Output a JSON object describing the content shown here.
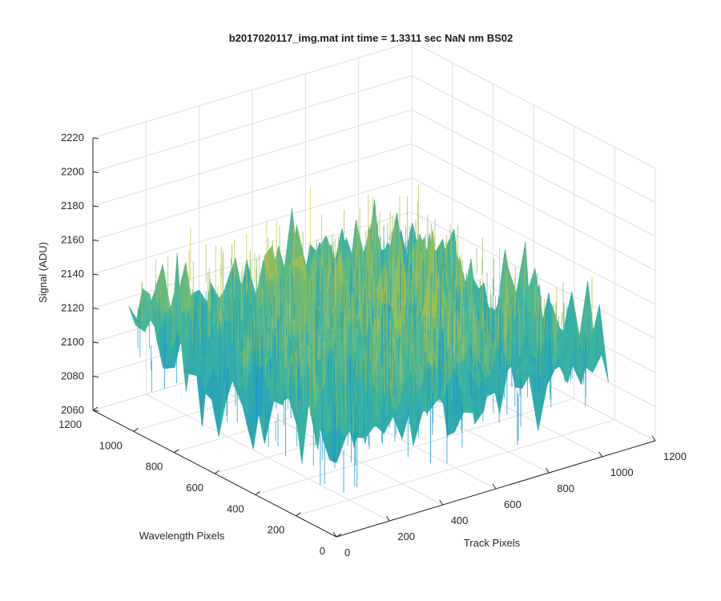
{
  "chart_data": {
    "type": "surface",
    "title": "b2017020117_img.mat int time = 1.3311 sec  NaN nm BS02",
    "xlabel": "Track Pixels",
    "ylabel": "Wavelength Pixels",
    "zlabel": "Signal (ADU)",
    "x_ticks": [
      "0",
      "200",
      "400",
      "600",
      "800",
      "1000",
      "1200"
    ],
    "y_ticks": [
      "0",
      "200",
      "400",
      "600",
      "800",
      "1000",
      "1200"
    ],
    "z_ticks": [
      "2060",
      "2080",
      "2100",
      "2120",
      "2140",
      "2160",
      "2180",
      "2200",
      "2220"
    ],
    "xlim": [
      0,
      1200
    ],
    "ylim": [
      0,
      1200
    ],
    "zlim": [
      2060,
      2220
    ],
    "x_data_range": [
      0,
      1024
    ],
    "y_data_range": [
      0,
      1024
    ],
    "z_mean_approx": 2125,
    "z_range_approx": [
      2070,
      2205
    ],
    "grid": true,
    "colormap": "parula",
    "colors": {
      "low": "#0f8fd6",
      "mid": "#3cb4a0",
      "high": "#e6c34a"
    }
  }
}
